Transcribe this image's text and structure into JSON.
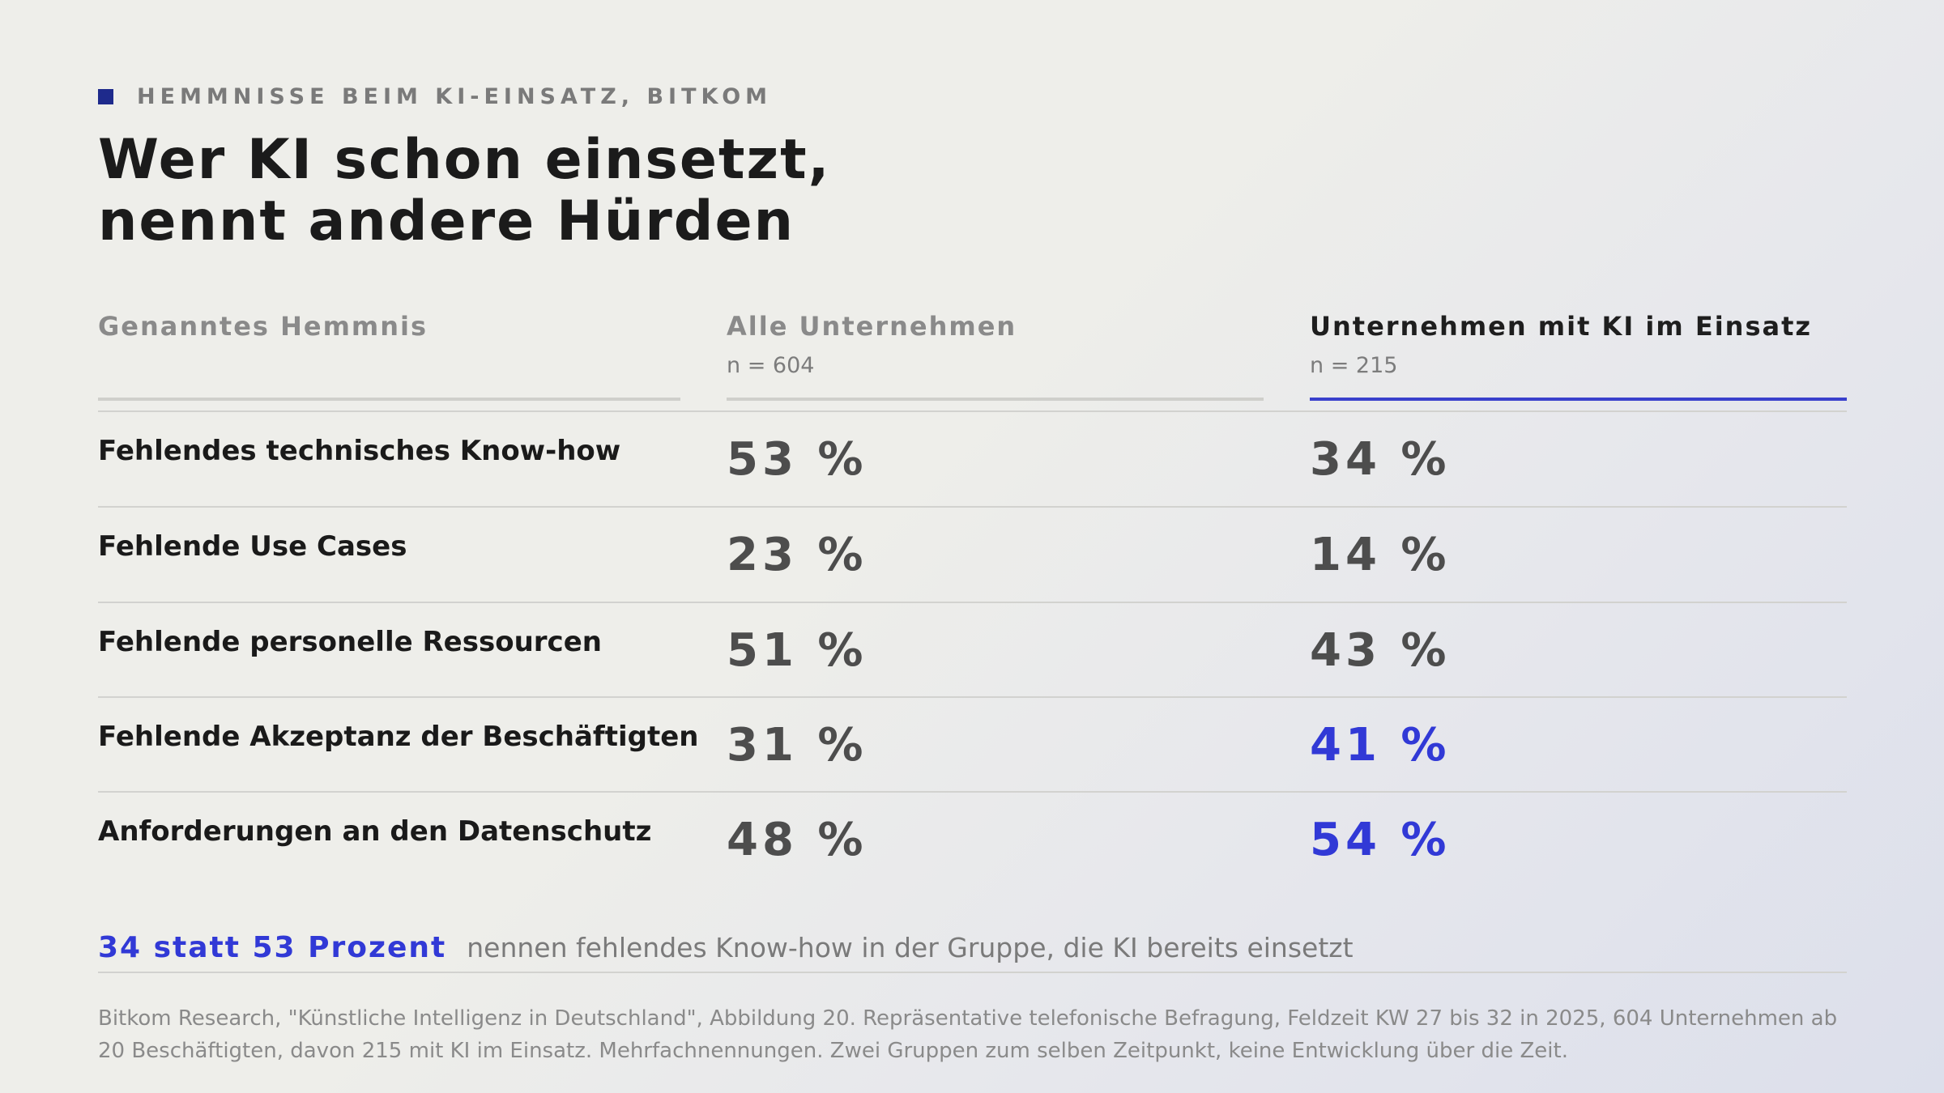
{
  "eyebrow": "HEMMNISSE BEIM KI-EINSATZ, BITKOM",
  "title_line1": "Wer KI schon einsetzt,",
  "title_line2": "nennt andere Hürden",
  "colors": {
    "accent": "#3139d6",
    "eyebrow_square": "#1e2a8c",
    "neutral_value": "#4d4d4d"
  },
  "chart_data": {
    "type": "table",
    "columns": [
      {
        "label": "Genanntes Hemmnis",
        "n": ""
      },
      {
        "label": "Alle Unternehmen",
        "n": "n = 604"
      },
      {
        "label": "Unternehmen mit KI im Einsatz",
        "n": "n = 215"
      }
    ],
    "rows": [
      {
        "label": "Fehlendes technisches Know-how",
        "all": 53,
        "ki": 34,
        "all_text": "53 %",
        "ki_text": "34 %",
        "ki_highlight": false
      },
      {
        "label": "Fehlende Use Cases",
        "all": 23,
        "ki": 14,
        "all_text": "23 %",
        "ki_text": "14 %",
        "ki_highlight": false
      },
      {
        "label": "Fehlende personelle Ressourcen",
        "all": 51,
        "ki": 43,
        "all_text": "51 %",
        "ki_text": "43 %",
        "ki_highlight": false
      },
      {
        "label": "Fehlende Akzeptanz der Beschäftigten",
        "all": 31,
        "ki": 41,
        "all_text": "31 %",
        "ki_text": "41 %",
        "ki_highlight": true
      },
      {
        "label": "Anforderungen an den Datenschutz",
        "all": 48,
        "ki": 54,
        "all_text": "48 %",
        "ki_text": "54 %",
        "ki_highlight": true
      }
    ]
  },
  "footnote": {
    "highlight": "34 statt 53 Prozent",
    "text": "nennen fehlendes Know-how in der Gruppe, die KI bereits einsetzt"
  },
  "source": "Bitkom Research, \"Künstliche Intelligenz in Deutschland\", Abbildung 20. Repräsentative telefonische Befragung, Feldzeit KW 27 bis 32 in 2025, 604 Unternehmen ab 20 Beschäftigten, davon 215 mit KI im Einsatz. Mehrfachnennungen. Zwei Gruppen zum selben Zeitpunkt, keine Entwicklung über die Zeit."
}
